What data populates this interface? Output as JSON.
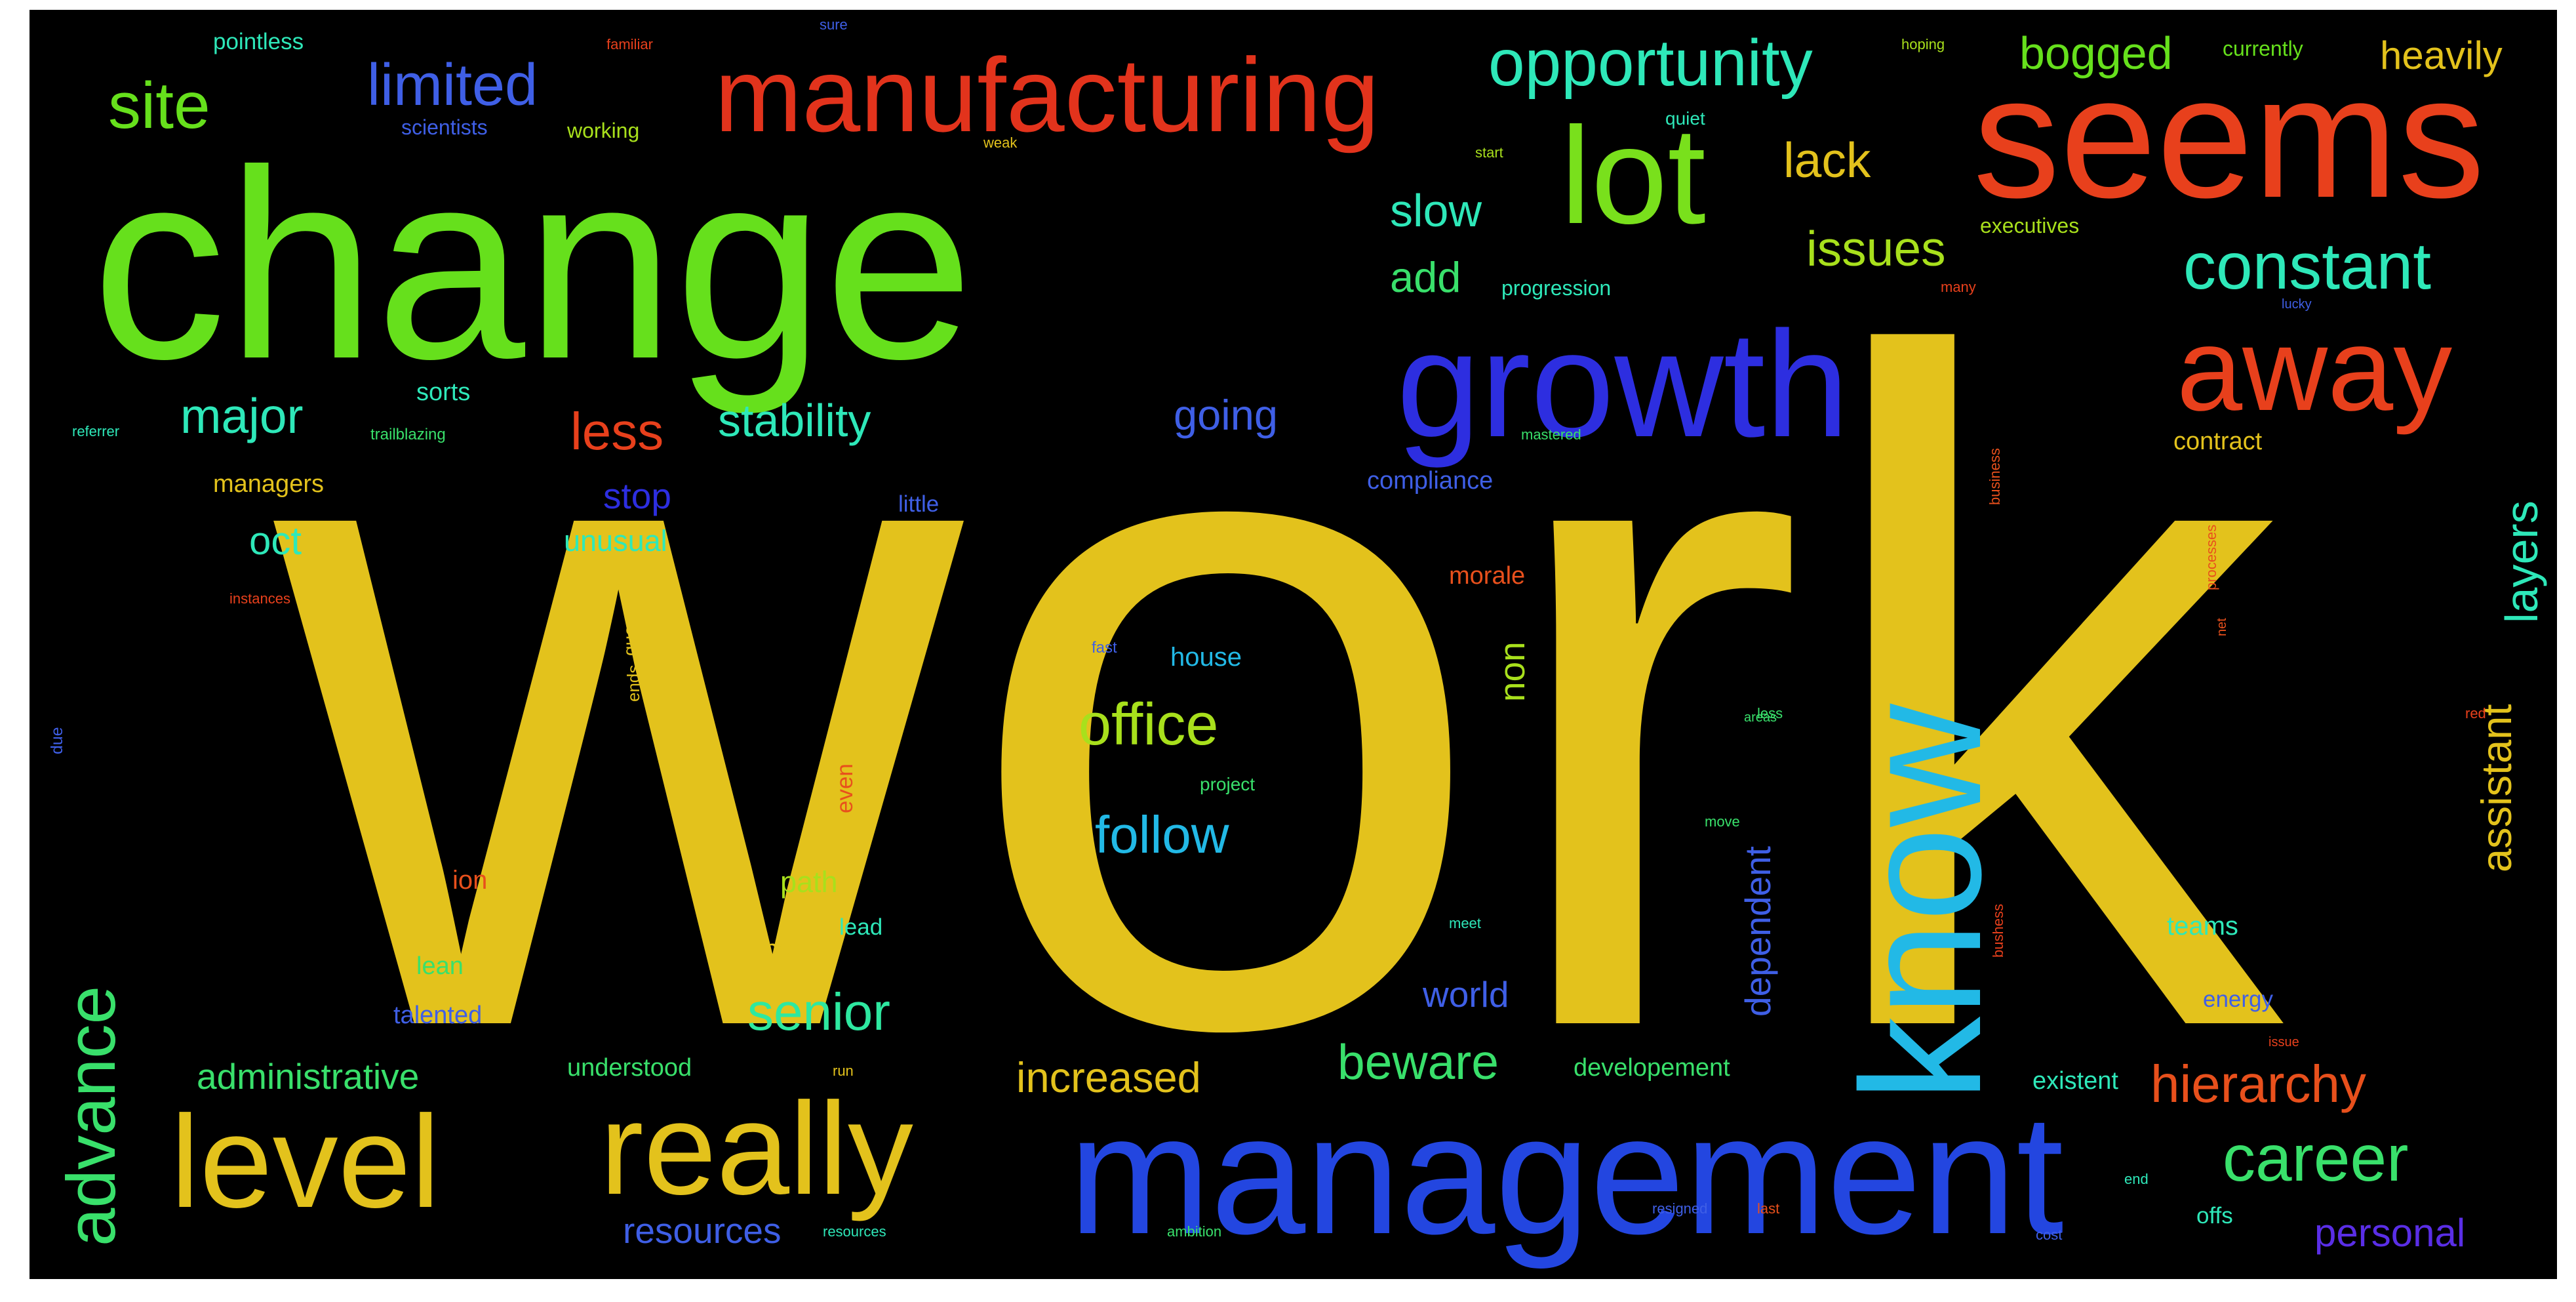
{
  "background": "#000000",
  "words": [
    {
      "text": "work",
      "color": "#e3c21c"
    },
    {
      "text": "change",
      "color": "#66e01c"
    },
    {
      "text": "seems",
      "color": "#e8401c"
    },
    {
      "text": "management",
      "color": "#2346e0"
    },
    {
      "text": "growth",
      "color": "#2d2ee0"
    },
    {
      "text": "know",
      "color": "#22b9e6"
    },
    {
      "text": "manufacturing",
      "color": "#e2331c"
    },
    {
      "text": "lot",
      "color": "#79e01c"
    },
    {
      "text": "away",
      "color": "#e8401c"
    },
    {
      "text": "really",
      "color": "#e3c21c"
    },
    {
      "text": "level",
      "color": "#e3c21c"
    },
    {
      "text": "constant",
      "color": "#2ee8b9"
    },
    {
      "text": "opportunity",
      "color": "#2ee8b9"
    },
    {
      "text": "site",
      "color": "#66e01c"
    },
    {
      "text": "limited",
      "color": "#3f5fe6"
    },
    {
      "text": "advance",
      "color": "#39e06b"
    },
    {
      "text": "career",
      "color": "#39e06b"
    },
    {
      "text": "office",
      "color": "#a8e01c"
    },
    {
      "text": "hierarchy",
      "color": "#e8501c"
    },
    {
      "text": "senior",
      "color": "#2ee8a0"
    },
    {
      "text": "beware",
      "color": "#39e06b"
    },
    {
      "text": "major",
      "color": "#2ee8b9"
    },
    {
      "text": "stability",
      "color": "#2ee8b9"
    },
    {
      "text": "less",
      "color": "#e8401c"
    },
    {
      "text": "lack",
      "color": "#e3c21c"
    },
    {
      "text": "issues",
      "color": "#a8e01c"
    },
    {
      "text": "slow",
      "color": "#2ee8b9"
    },
    {
      "text": "add",
      "color": "#39e06b"
    },
    {
      "text": "layers",
      "color": "#2ee8b9"
    },
    {
      "text": "assistant",
      "color": "#e3c21c"
    },
    {
      "text": "bogged",
      "color": "#66e01c"
    },
    {
      "text": "heavily",
      "color": "#e3c21c"
    },
    {
      "text": "follow",
      "color": "#22b9e6"
    },
    {
      "text": "going",
      "color": "#3f5fe6"
    },
    {
      "text": "increased",
      "color": "#e3c21c"
    },
    {
      "text": "personal",
      "color": "#5a2ee6"
    },
    {
      "text": "resources",
      "color": "#3f5fe6"
    },
    {
      "text": "administrative",
      "color": "#39e06b"
    },
    {
      "text": "stop",
      "color": "#2d2ee0"
    },
    {
      "text": "oct",
      "color": "#2ee8b9"
    },
    {
      "text": "unusual",
      "color": "#2ee8b9"
    },
    {
      "text": "world",
      "color": "#3f5fe6"
    },
    {
      "text": "dependent",
      "color": "#3f5fe6"
    },
    {
      "text": "non",
      "color": "#a8e01c"
    },
    {
      "text": "house",
      "color": "#22b9e6"
    },
    {
      "text": "path",
      "color": "#a8e01c"
    },
    {
      "text": "hard",
      "color": "#e3c21c"
    },
    {
      "text": "lead",
      "color": "#2ee8b9"
    },
    {
      "text": "even",
      "color": "#e8501c"
    },
    {
      "text": "ion",
      "color": "#e8501c"
    },
    {
      "text": "lean",
      "color": "#39e06b"
    },
    {
      "text": "talented",
      "color": "#3f5fe6"
    },
    {
      "text": "understood",
      "color": "#39e06b"
    },
    {
      "text": "developement",
      "color": "#39e06b"
    },
    {
      "text": "existent",
      "color": "#2ee8b9"
    },
    {
      "text": "teams",
      "color": "#2ee8b9"
    },
    {
      "text": "energy",
      "color": "#3f5fe6"
    },
    {
      "text": "offs",
      "color": "#2ee8b9"
    },
    {
      "text": "managers",
      "color": "#e3c21c"
    },
    {
      "text": "sorts",
      "color": "#2ee8b9"
    },
    {
      "text": "little",
      "color": "#3f5fe6"
    },
    {
      "text": "compliance",
      "color": "#3f5fe6"
    },
    {
      "text": "morale",
      "color": "#e8501c"
    },
    {
      "text": "contract",
      "color": "#e3c21c"
    },
    {
      "text": "executives",
      "color": "#a8e01c"
    },
    {
      "text": "progression",
      "color": "#2ee8b9"
    },
    {
      "text": "currently",
      "color": "#66e01c"
    },
    {
      "text": "pointless",
      "color": "#2ee8b9"
    },
    {
      "text": "scientists",
      "color": "#3f5fe6"
    },
    {
      "text": "working",
      "color": "#a8e01c"
    },
    {
      "text": "quiet",
      "color": "#2ee8b9"
    },
    {
      "text": "project",
      "color": "#39e06b"
    },
    {
      "text": "due",
      "color": "#3f5fe6"
    },
    {
      "text": "quo",
      "color": "#e3c21c"
    },
    {
      "text": "ends",
      "color": "#e3c21c"
    },
    {
      "text": "fast",
      "color": "#3f5fe6"
    },
    {
      "text": "familiar",
      "color": "#e8401c"
    },
    {
      "text": "hoping",
      "color": "#a8e01c"
    },
    {
      "text": "start",
      "color": "#a8e01c"
    },
    {
      "text": "trailblazing",
      "color": "#39e06b"
    },
    {
      "text": "bushess",
      "color": "#e8401c"
    },
    {
      "text": "mastered",
      "color": "#39e06b"
    },
    {
      "text": "referrer",
      "color": "#2ee8b9"
    },
    {
      "text": "instances",
      "color": "#e8401c"
    },
    {
      "text": "business",
      "color": "#e8501c"
    },
    {
      "text": "processes",
      "color": "#e8501c"
    },
    {
      "text": "resources",
      "color": "#2ee8b9"
    },
    {
      "text": "ambition",
      "color": "#39e06b"
    },
    {
      "text": "resigned",
      "color": "#3f5fe6"
    },
    {
      "text": "cost",
      "color": "#3f5fe6"
    },
    {
      "text": "many",
      "color": "#e8401c"
    },
    {
      "text": "weak",
      "color": "#e3c21c"
    },
    {
      "text": "sure",
      "color": "#3f5fe6"
    },
    {
      "text": "red",
      "color": "#e8401c"
    },
    {
      "text": "move",
      "color": "#39e06b"
    },
    {
      "text": "end",
      "color": "#2ee8b9"
    },
    {
      "text": "last",
      "color": "#e8501c"
    },
    {
      "text": "less",
      "color": "#39e06b"
    },
    {
      "text": "areas",
      "color": "#39e06b"
    },
    {
      "text": "issue",
      "color": "#e8401c"
    },
    {
      "text": "lucky",
      "color": "#3f5fe6"
    },
    {
      "text": "net",
      "color": "#e8501c"
    },
    {
      "text": "meet",
      "color": "#2ee8b9"
    },
    {
      "text": "run",
      "color": "#e3c21c"
    }
  ]
}
